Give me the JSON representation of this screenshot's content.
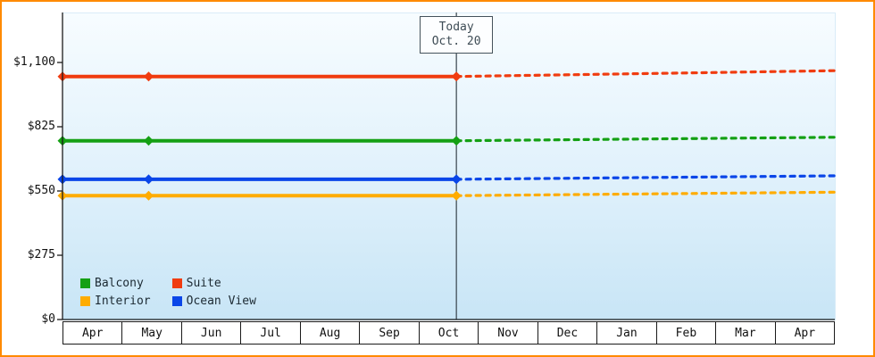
{
  "chart_data": {
    "type": "line",
    "months": [
      "Apr",
      "May",
      "Jun",
      "Jul",
      "Aug",
      "Sep",
      "Oct",
      "Nov",
      "Dec",
      "Jan",
      "Feb",
      "Mar",
      "Apr"
    ],
    "y_ticks": [
      {
        "label": "$1,100",
        "value": 1100
      },
      {
        "label": "$825",
        "value": 825
      },
      {
        "label": "$550",
        "value": 550
      },
      {
        "label": "$275",
        "value": 275
      },
      {
        "label": "$0",
        "value": 0
      }
    ],
    "y_axis_max": 1100,
    "ylim": [
      0,
      1100
    ],
    "today": {
      "line1": "Today",
      "line2": "Oct. 20",
      "month_position": 6.63
    },
    "series": [
      {
        "name": "Suite",
        "color": "#f03c10",
        "history": {
          "x": [
            0,
            1.45,
            6.63
          ],
          "values": [
            1040,
            1040,
            1040
          ]
        },
        "forecast": {
          "x": [
            6.63,
            13
          ],
          "values": [
            1040,
            1065
          ]
        }
      },
      {
        "name": "Balcony",
        "color": "#14a014",
        "history": {
          "x": [
            0,
            1.45,
            6.63
          ],
          "values": [
            765,
            765,
            765
          ]
        },
        "forecast": {
          "x": [
            6.63,
            13
          ],
          "values": [
            765,
            780
          ]
        }
      },
      {
        "name": "Ocean View",
        "color": "#0a46e8",
        "history": {
          "x": [
            0,
            1.45,
            6.63
          ],
          "values": [
            600,
            600,
            600
          ]
        },
        "forecast": {
          "x": [
            6.63,
            13
          ],
          "values": [
            600,
            615
          ]
        }
      },
      {
        "name": "Interior",
        "color": "#ffac00",
        "history": {
          "x": [
            0,
            1.45,
            6.63
          ],
          "values": [
            530,
            530,
            530
          ]
        },
        "forecast": {
          "x": [
            6.63,
            13
          ],
          "values": [
            530,
            545
          ]
        }
      }
    ],
    "legend": {
      "items": [
        {
          "label": "Balcony",
          "color": "#14a014"
        },
        {
          "label": "Suite",
          "color": "#f03c10"
        },
        {
          "label": "Interior",
          "color": "#ffac00"
        },
        {
          "label": "Ocean View",
          "color": "#0a46e8"
        }
      ]
    },
    "frame_border_color": "#ff8a00"
  }
}
